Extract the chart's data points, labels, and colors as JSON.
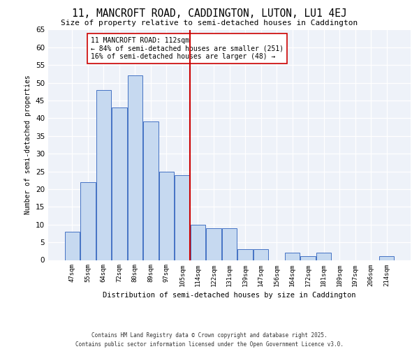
{
  "title": "11, MANCROFT ROAD, CADDINGTON, LUTON, LU1 4EJ",
  "subtitle": "Size of property relative to semi-detached houses in Caddington",
  "xlabel": "Distribution of semi-detached houses by size in Caddington",
  "ylabel": "Number of semi-detached properties",
  "categories": [
    "47sqm",
    "55sqm",
    "64sqm",
    "72sqm",
    "80sqm",
    "89sqm",
    "97sqm",
    "105sqm",
    "114sqm",
    "122sqm",
    "131sqm",
    "139sqm",
    "147sqm",
    "156sqm",
    "164sqm",
    "172sqm",
    "181sqm",
    "189sqm",
    "197sqm",
    "206sqm",
    "214sqm"
  ],
  "values": [
    8,
    22,
    48,
    43,
    52,
    39,
    25,
    24,
    10,
    9,
    9,
    3,
    3,
    0,
    2,
    1,
    2,
    0,
    0,
    0,
    1
  ],
  "bar_color": "#c6d9f0",
  "bar_edge_color": "#4472c4",
  "vline_x_index": 8,
  "vline_color": "#cc0000",
  "annotation_title": "11 MANCROFT ROAD: 112sqm",
  "annotation_line1": "← 84% of semi-detached houses are smaller (251)",
  "annotation_line2": "16% of semi-detached houses are larger (48) →",
  "annotation_box_color": "#cc0000",
  "annotation_fill": "#ffffff",
  "ylim": [
    0,
    65
  ],
  "yticks": [
    0,
    5,
    10,
    15,
    20,
    25,
    30,
    35,
    40,
    45,
    50,
    55,
    60,
    65
  ],
  "footer_line1": "Contains HM Land Registry data © Crown copyright and database right 2025.",
  "footer_line2": "Contains public sector information licensed under the Open Government Licence v3.0.",
  "background_color": "#eef2f9",
  "grid_color": "#ffffff"
}
